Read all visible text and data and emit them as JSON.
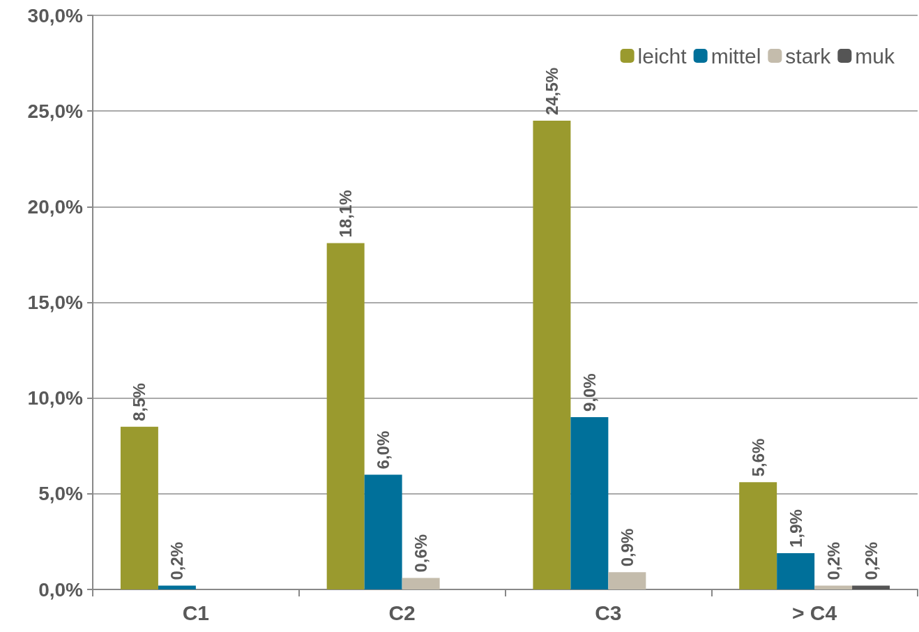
{
  "chart_data": {
    "type": "bar",
    "categories": [
      "C1",
      "C2",
      "C3",
      "> C4"
    ],
    "series": [
      {
        "name": "leicht",
        "color": "#9a9a2e",
        "values": [
          8.5,
          18.1,
          24.5,
          5.6
        ],
        "value_labels": [
          "8,5%",
          "18,1%",
          "24,5%",
          "5,6%"
        ]
      },
      {
        "name": "mittel",
        "color": "#00709a",
        "values": [
          0.2,
          6.0,
          9.0,
          1.9
        ],
        "value_labels": [
          "0,2%",
          "6,0%",
          "9,0%",
          "1,9%"
        ]
      },
      {
        "name": "stark",
        "color": "#c4bcac",
        "values": [
          null,
          0.6,
          0.9,
          0.2
        ],
        "value_labels": [
          null,
          "0,6%",
          "0,9%",
          "0,2%"
        ]
      },
      {
        "name": "muk",
        "color": "#555555",
        "values": [
          null,
          null,
          null,
          0.2
        ],
        "value_labels": [
          null,
          null,
          null,
          "0,2%"
        ]
      }
    ],
    "ylim": [
      0,
      30
    ],
    "yticks": [
      {
        "value": 0,
        "label": "0,0%"
      },
      {
        "value": 5,
        "label": "5,0%"
      },
      {
        "value": 10,
        "label": "10,0%"
      },
      {
        "value": 15,
        "label": "15,0%"
      },
      {
        "value": 20,
        "label": "20,0%"
      },
      {
        "value": 25,
        "label": "25,0%"
      },
      {
        "value": 30,
        "label": "30,0%"
      }
    ],
    "grid": "y",
    "legend": "top right"
  }
}
